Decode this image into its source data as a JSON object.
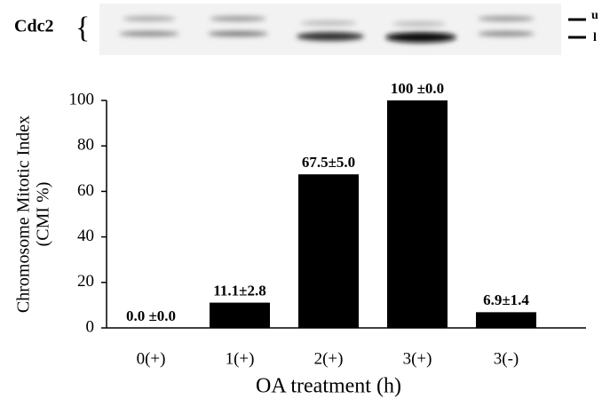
{
  "blot": {
    "label": "Cdc2",
    "bands": [
      "u",
      "l"
    ]
  },
  "chart_data": {
    "type": "bar",
    "y_label_lines": [
      "Chromosome Mitotic Index",
      "(CMI %)"
    ],
    "x_label": "OA treatment (h)",
    "categories": [
      "0(+)",
      "1(+)",
      "2(+)",
      "3(+)",
      "3(-)"
    ],
    "values": [
      0.0,
      11.1,
      67.5,
      100,
      6.9
    ],
    "value_labels": [
      "0.0 ±0.0",
      "11.1±2.8",
      "67.5±5.0",
      "100 ±0.0",
      "6.9±1.4"
    ],
    "color": "#000000",
    "ylim": [
      0,
      100
    ],
    "yticks": [
      0,
      20,
      40,
      60,
      80,
      100
    ],
    "grid": false
  }
}
